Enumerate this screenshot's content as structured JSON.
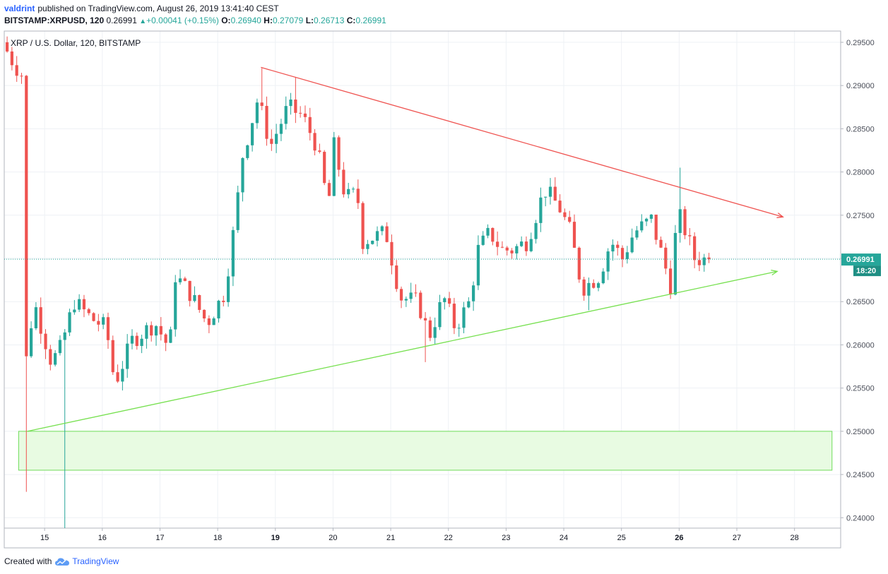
{
  "header": {
    "user": "valdrint",
    "published_text": "published on TradingView.com, August 26, 2019 13:41:40 CEST",
    "symbol": "BITSTAMP:XRPUSD, 120",
    "last": "0.26991",
    "arrow": "▲",
    "change": "+0.00041 (+0.15%)",
    "o_label": "O:",
    "o_val": "0.26940",
    "h_label": "H:",
    "h_val": "0.27079",
    "l_label": "L:",
    "l_val": "0.26713",
    "c_label": "C:",
    "c_val": "0.26991"
  },
  "footer": {
    "created_with": "Created with",
    "brand": "TradingView",
    "brand_icon": "tradingview-cloud-icon"
  },
  "colors": {
    "up": "#26a69a",
    "down": "#ef5350",
    "resistance": "#ef5350",
    "support": "#76e04f",
    "zone_fill": "#e8fbe2",
    "zone_stroke": "#6fdc5a",
    "price_tag": "#26a69a"
  },
  "chart_data": {
    "type": "candlestick",
    "title": "XRP / U.S. Dollar, 120, BITSTAMP",
    "ylim": [
      0.2388,
      0.2963
    ],
    "y_ticks": [
      "0.29500",
      "0.29000",
      "0.28500",
      "0.28000",
      "0.27500",
      "0.27000",
      "0.26500",
      "0.26000",
      "0.25500",
      "0.25000",
      "0.24500",
      "0.24000"
    ],
    "x_range_days": [
      14.3,
      28.8
    ],
    "x_ticks": [
      {
        "day": 15,
        "label": "15",
        "bold": false
      },
      {
        "day": 16,
        "label": "16",
        "bold": false
      },
      {
        "day": 17,
        "label": "17",
        "bold": false
      },
      {
        "day": 18,
        "label": "18",
        "bold": false
      },
      {
        "day": 19,
        "label": "19",
        "bold": true
      },
      {
        "day": 20,
        "label": "20",
        "bold": false
      },
      {
        "day": 21,
        "label": "21",
        "bold": false
      },
      {
        "day": 22,
        "label": "22",
        "bold": false
      },
      {
        "day": 23,
        "label": "23",
        "bold": false
      },
      {
        "day": 24,
        "label": "24",
        "bold": false
      },
      {
        "day": 25,
        "label": "25",
        "bold": false
      },
      {
        "day": 26,
        "label": "26",
        "bold": true
      },
      {
        "day": 27,
        "label": "27",
        "bold": false
      },
      {
        "day": 28,
        "label": "28",
        "bold": false
      }
    ],
    "current_price": {
      "value": 0.26991,
      "label": "0.26991",
      "countdown": "18:20"
    },
    "trendlines": [
      {
        "name": "resistance",
        "x1": 18.75,
        "y1": 0.2921,
        "x2": 27.8,
        "y2": 0.2748,
        "arrow": true
      },
      {
        "name": "support",
        "x1": 14.7,
        "y1": 0.25,
        "x2": 27.7,
        "y2": 0.2685,
        "arrow": true
      }
    ],
    "zone": {
      "x1": 14.55,
      "x2": 28.65,
      "y_top": 0.25,
      "y_bottom": 0.2455
    },
    "key_points": [
      {
        "day": 14.35,
        "price": 0.295
      },
      {
        "day": 14.55,
        "price": 0.2925
      },
      {
        "day": 14.72,
        "price": 0.291
      },
      {
        "day": 14.74,
        "price": 0.257
      },
      {
        "day": 14.9,
        "price": 0.265
      },
      {
        "day": 15.2,
        "price": 0.258
      },
      {
        "day": 15.35,
        "price": 0.2595
      },
      {
        "day": 15.6,
        "price": 0.265
      },
      {
        "day": 15.9,
        "price": 0.263
      },
      {
        "day": 16.15,
        "price": 0.262
      },
      {
        "day": 16.3,
        "price": 0.2555
      },
      {
        "day": 16.6,
        "price": 0.2605
      },
      {
        "day": 17.0,
        "price": 0.2625
      },
      {
        "day": 17.25,
        "price": 0.2595
      },
      {
        "day": 17.35,
        "price": 0.268
      },
      {
        "day": 17.6,
        "price": 0.266
      },
      {
        "day": 17.9,
        "price": 0.2625
      },
      {
        "day": 18.2,
        "price": 0.266
      },
      {
        "day": 18.4,
        "price": 0.275
      },
      {
        "day": 18.5,
        "price": 0.2815
      },
      {
        "day": 18.78,
        "price": 0.2885
      },
      {
        "day": 19.0,
        "price": 0.283
      },
      {
        "day": 19.3,
        "price": 0.2875
      },
      {
        "day": 19.55,
        "price": 0.2865
      },
      {
        "day": 19.8,
        "price": 0.283
      },
      {
        "day": 20.0,
        "price": 0.276
      },
      {
        "day": 20.1,
        "price": 0.283
      },
      {
        "day": 20.3,
        "price": 0.277
      },
      {
        "day": 20.5,
        "price": 0.2775
      },
      {
        "day": 20.6,
        "price": 0.272
      },
      {
        "day": 21.0,
        "price": 0.273
      },
      {
        "day": 21.25,
        "price": 0.2655
      },
      {
        "day": 21.55,
        "price": 0.265
      },
      {
        "day": 21.75,
        "price": 0.261
      },
      {
        "day": 22.0,
        "price": 0.2655
      },
      {
        "day": 22.2,
        "price": 0.262
      },
      {
        "day": 22.45,
        "price": 0.265
      },
      {
        "day": 22.6,
        "price": 0.271
      },
      {
        "day": 22.8,
        "price": 0.273
      },
      {
        "day": 23.0,
        "price": 0.271
      },
      {
        "day": 23.2,
        "price": 0.271
      },
      {
        "day": 23.45,
        "price": 0.272
      },
      {
        "day": 23.75,
        "price": 0.278
      },
      {
        "day": 24.0,
        "price": 0.276
      },
      {
        "day": 24.2,
        "price": 0.273
      },
      {
        "day": 24.4,
        "price": 0.2665
      },
      {
        "day": 24.7,
        "price": 0.268
      },
      {
        "day": 24.9,
        "price": 0.272
      },
      {
        "day": 25.1,
        "price": 0.27
      },
      {
        "day": 25.3,
        "price": 0.273
      },
      {
        "day": 25.6,
        "price": 0.2745
      },
      {
        "day": 25.8,
        "price": 0.27
      },
      {
        "day": 25.95,
        "price": 0.2665
      },
      {
        "day": 26.05,
        "price": 0.2755
      },
      {
        "day": 26.2,
        "price": 0.273
      },
      {
        "day": 26.35,
        "price": 0.27
      },
      {
        "day": 26.48,
        "price": 0.26991
      }
    ],
    "spikes": [
      {
        "day": 14.72,
        "price": 0.243
      },
      {
        "day": 15.35,
        "price": 0.2388
      },
      {
        "day": 18.75,
        "price": 0.292
      },
      {
        "day": 19.35,
        "price": 0.291
      },
      {
        "day": 21.6,
        "price": 0.258
      },
      {
        "day": 24.4,
        "price": 0.264
      },
      {
        "day": 26.05,
        "price": 0.2805
      }
    ]
  }
}
